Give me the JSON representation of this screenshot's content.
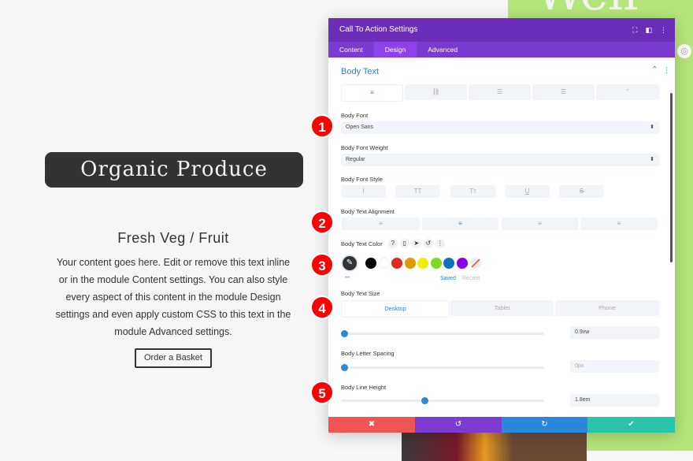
{
  "background": {
    "headline_fragment": "Well",
    "accent_green": "#b5e57a"
  },
  "module": {
    "title": "Organic Produce",
    "heading": "Fresh Veg / Fruit",
    "body": "Your content goes here. Edit or remove this text inline or in the module Content settings. You can also style every aspect of this content in the module Design settings and even apply custom CSS to this text in the module Advanced settings.",
    "button": "Order a Basket"
  },
  "panel": {
    "title": "Call To Action Settings",
    "header_icons": [
      "expand-icon",
      "split-view-icon",
      "more-icon"
    ],
    "tabs": [
      {
        "label": "Content"
      },
      {
        "label": "Design",
        "active": true
      },
      {
        "label": "Advanced"
      }
    ],
    "section": "Body Text",
    "text_tabs": [
      "paragraph-icon",
      "link-icon",
      "unordered-list-icon",
      "ordered-list-icon",
      "quote-icon"
    ],
    "body_font": {
      "label": "Body Font",
      "value": "Open Sans"
    },
    "body_font_weight": {
      "label": "Body Font Weight",
      "value": "Regular"
    },
    "body_font_style": {
      "label": "Body Font Style",
      "buttons": [
        "I",
        "TT",
        "Tт",
        "U",
        "S"
      ]
    },
    "body_text_alignment": {
      "label": "Body Text Alignment",
      "selected": "center"
    },
    "body_text_color": {
      "label": "Body Text Color",
      "icons": [
        "?",
        "▯",
        "➤",
        "↺",
        "⋮"
      ],
      "swatches": [
        "#000000",
        "#ffffff",
        "#e02b20",
        "#e09900",
        "#edf000",
        "#7cda24",
        "#0c71c3",
        "#8300e9"
      ],
      "saved": "Saved",
      "recent": "Recent",
      "more": "•••"
    },
    "body_text_size": {
      "label": "Body Text Size",
      "devices": [
        "Desktop",
        "Tablet",
        "Phone"
      ],
      "active_device": "Desktop",
      "value": "0.9vw",
      "slider_percent": 0
    },
    "body_letter_spacing": {
      "label": "Body Letter Spacing",
      "value": "0px",
      "slider_percent": 0
    },
    "body_line_height": {
      "label": "Body Line Height",
      "value": "1.8em",
      "slider_percent": 40
    },
    "footer": {
      "cancel": "✖",
      "undo": "↺",
      "redo": "↻",
      "save": "✔",
      "colors": [
        "#ef5555",
        "#7e3bd0",
        "#2b87da",
        "#29c4a9"
      ]
    }
  },
  "badges": [
    "1",
    "2",
    "3",
    "4",
    "5"
  ]
}
